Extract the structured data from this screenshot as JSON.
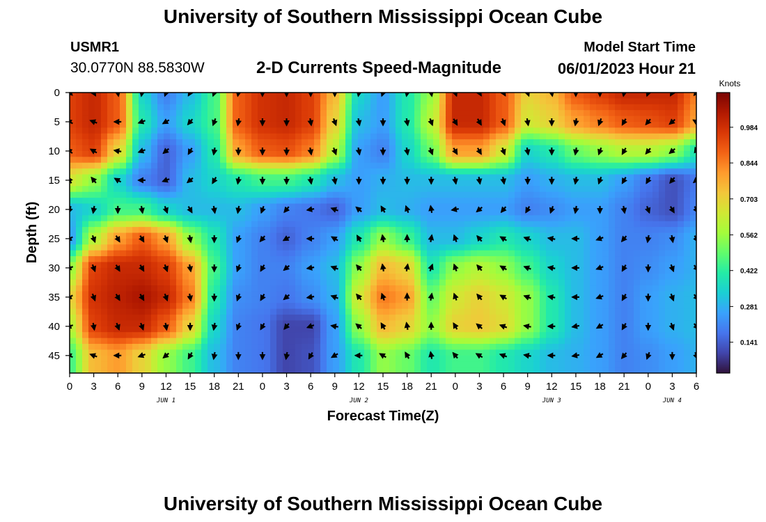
{
  "header": {
    "title": "University of Southern Mississippi Ocean Cube",
    "station_id": "USMR1",
    "latlon": "30.0770N  88.5830W",
    "product": "2-D Currents Speed-Magnitude",
    "model_start_label": "Model Start Time",
    "model_start_value": "06/01/2023 Hour 21"
  },
  "footer": {
    "title": "University of Southern Mississippi Ocean Cube"
  },
  "chart_data": {
    "type": "heatmap",
    "title": "2-D Currents Speed-Magnitude",
    "xlabel": "Forecast Time(Z)",
    "ylabel": "Depth (ft)",
    "x_ticks": [
      "0",
      "3",
      "6",
      "9",
      "12",
      "15",
      "18",
      "21",
      "0",
      "3",
      "6",
      "9",
      "12",
      "15",
      "18",
      "21",
      "0",
      "3",
      "6",
      "9",
      "12",
      "15",
      "18",
      "21",
      "0",
      "3",
      "6"
    ],
    "x_hours": [
      0,
      3,
      6,
      9,
      12,
      15,
      18,
      21,
      24,
      27,
      30,
      33,
      36,
      39,
      42,
      45,
      48,
      51,
      54,
      57,
      60,
      63,
      66,
      69,
      72,
      75,
      78
    ],
    "day_labels": [
      {
        "text": "JUN 1",
        "hour": 12
      },
      {
        "text": "JUN 2",
        "hour": 36
      },
      {
        "text": "JUN 3",
        "hour": 60
      },
      {
        "text": "JUN 4",
        "hour": 75
      }
    ],
    "y_ticks": [
      0,
      5,
      10,
      15,
      20,
      25,
      30,
      35,
      40,
      45
    ],
    "ylim": [
      0,
      48
    ],
    "xlim": [
      0,
      78
    ],
    "colorbar": {
      "label": "Knots",
      "ticks": [
        "0.984",
        "0.844",
        "0.703",
        "0.562",
        "0.422",
        "0.281",
        "0.141"
      ],
      "tick_values": [
        0.984,
        0.844,
        0.703,
        0.562,
        0.422,
        0.281,
        0.141
      ],
      "range": [
        0.02,
        1.12
      ],
      "colors": [
        "#30123b",
        "#4145ab",
        "#4675ed",
        "#39a2fc",
        "#1bcfd4",
        "#24eca6",
        "#61fc6c",
        "#a4fc3b",
        "#d1e834",
        "#f3c63a",
        "#fe9b2d",
        "#f36315",
        "#d93806",
        "#b11901",
        "#7a0403"
      ]
    },
    "speed_rows_depth": [
      0,
      5,
      10,
      15,
      20,
      25,
      30,
      35,
      40,
      45
    ],
    "speed_cols_hour": [
      0,
      3,
      6,
      9,
      12,
      15,
      18,
      21,
      24,
      27,
      30,
      33,
      36,
      39,
      42,
      45,
      48,
      51,
      54,
      57,
      60,
      63,
      66,
      69,
      72,
      75,
      78
    ],
    "speed_knots": [
      [
        0.95,
        1.0,
        0.9,
        0.35,
        0.2,
        0.3,
        0.45,
        0.9,
        0.98,
        1.0,
        0.95,
        0.75,
        0.35,
        0.25,
        0.4,
        0.55,
        1.0,
        1.0,
        0.9,
        0.7,
        0.75,
        0.9,
        0.95,
        1.0,
        1.0,
        1.0,
        0.85
      ],
      [
        0.95,
        1.0,
        0.9,
        0.4,
        0.25,
        0.35,
        0.45,
        0.9,
        0.98,
        1.0,
        0.95,
        0.7,
        0.3,
        0.25,
        0.4,
        0.6,
        1.0,
        1.0,
        0.9,
        0.65,
        0.7,
        0.8,
        0.85,
        0.9,
        0.92,
        0.95,
        0.8
      ],
      [
        0.9,
        0.95,
        0.7,
        0.3,
        0.15,
        0.25,
        0.4,
        0.8,
        0.9,
        0.92,
        0.85,
        0.6,
        0.25,
        0.2,
        0.35,
        0.5,
        0.8,
        0.8,
        0.65,
        0.35,
        0.4,
        0.5,
        0.55,
        0.6,
        0.6,
        0.55,
        0.4
      ],
      [
        0.65,
        0.55,
        0.35,
        0.2,
        0.15,
        0.3,
        0.35,
        0.4,
        0.45,
        0.45,
        0.4,
        0.3,
        0.25,
        0.28,
        0.3,
        0.3,
        0.3,
        0.3,
        0.3,
        0.25,
        0.28,
        0.3,
        0.3,
        0.25,
        0.18,
        0.12,
        0.18
      ],
      [
        0.3,
        0.35,
        0.45,
        0.45,
        0.35,
        0.3,
        0.3,
        0.3,
        0.25,
        0.2,
        0.18,
        0.15,
        0.25,
        0.3,
        0.28,
        0.25,
        0.25,
        0.25,
        0.25,
        0.2,
        0.22,
        0.25,
        0.25,
        0.2,
        0.15,
        0.12,
        0.2
      ],
      [
        0.25,
        0.6,
        0.8,
        0.9,
        0.8,
        0.55,
        0.4,
        0.25,
        0.2,
        0.15,
        0.2,
        0.25,
        0.4,
        0.55,
        0.45,
        0.3,
        0.3,
        0.35,
        0.4,
        0.35,
        0.3,
        0.3,
        0.25,
        0.2,
        0.2,
        0.22,
        0.28
      ],
      [
        0.55,
        0.95,
        1.0,
        1.0,
        0.95,
        0.8,
        0.45,
        0.25,
        0.2,
        0.2,
        0.25,
        0.3,
        0.55,
        0.75,
        0.7,
        0.4,
        0.55,
        0.6,
        0.55,
        0.45,
        0.35,
        0.3,
        0.25,
        0.2,
        0.22,
        0.25,
        0.28
      ],
      [
        0.7,
        0.98,
        1.02,
        1.05,
        1.0,
        0.85,
        0.4,
        0.22,
        0.2,
        0.18,
        0.22,
        0.28,
        0.65,
        0.85,
        0.8,
        0.5,
        0.65,
        0.7,
        0.65,
        0.55,
        0.4,
        0.3,
        0.25,
        0.2,
        0.25,
        0.28,
        0.3
      ],
      [
        0.6,
        0.95,
        1.0,
        1.0,
        0.9,
        0.7,
        0.35,
        0.2,
        0.18,
        0.1,
        0.1,
        0.25,
        0.55,
        0.75,
        0.7,
        0.55,
        0.7,
        0.72,
        0.68,
        0.55,
        0.4,
        0.3,
        0.25,
        0.2,
        0.25,
        0.28,
        0.3
      ],
      [
        0.45,
        0.75,
        0.8,
        0.7,
        0.55,
        0.45,
        0.3,
        0.2,
        0.18,
        0.1,
        0.12,
        0.25,
        0.4,
        0.55,
        0.5,
        0.4,
        0.45,
        0.45,
        0.4,
        0.35,
        0.3,
        0.28,
        0.25,
        0.2,
        0.22,
        0.25,
        0.28
      ]
    ],
    "vector_rows_depth": [
      0,
      5,
      10,
      15,
      20,
      25,
      30,
      35,
      40,
      45
    ],
    "vector_cols_hour": [
      0,
      3,
      6,
      9,
      12,
      15,
      18,
      21,
      24,
      27,
      30,
      33,
      36,
      39,
      42,
      45,
      48,
      51,
      54,
      57,
      60,
      63,
      66,
      69,
      72,
      75,
      78
    ],
    "vector_direction_deg": [
      [
        135,
        150,
        170,
        190,
        200,
        210,
        200,
        190,
        180,
        180,
        180,
        180,
        190,
        200,
        190,
        170,
        160,
        150,
        150,
        160,
        170,
        180,
        180,
        190,
        200,
        210,
        220
      ],
      [
        300,
        290,
        270,
        250,
        240,
        220,
        200,
        190,
        180,
        180,
        170,
        160,
        170,
        180,
        170,
        160,
        150,
        150,
        160,
        170,
        180,
        190,
        200,
        210,
        220,
        230,
        300
      ],
      [
        310,
        300,
        280,
        250,
        230,
        210,
        190,
        180,
        180,
        180,
        170,
        160,
        170,
        180,
        170,
        160,
        150,
        150,
        160,
        170,
        180,
        190,
        200,
        210,
        220,
        230,
        340
      ],
      [
        330,
        320,
        300,
        270,
        250,
        230,
        210,
        190,
        180,
        180,
        170,
        170,
        180,
        180,
        180,
        180,
        170,
        170,
        170,
        180,
        180,
        190,
        200,
        210,
        210,
        220,
        230
      ],
      [
        200,
        190,
        180,
        170,
        160,
        150,
        170,
        190,
        200,
        220,
        260,
        290,
        310,
        330,
        340,
        350,
        260,
        230,
        220,
        210,
        200,
        190,
        180,
        170,
        160,
        150,
        150
      ],
      [
        240,
        160,
        150,
        150,
        160,
        170,
        180,
        200,
        220,
        240,
        270,
        300,
        330,
        350,
        0,
        10,
        340,
        320,
        300,
        290,
        280,
        270,
        250,
        220,
        190,
        170,
        150
      ],
      [
        250,
        160,
        150,
        150,
        160,
        170,
        180,
        200,
        210,
        230,
        260,
        290,
        320,
        350,
        10,
        20,
        340,
        320,
        300,
        290,
        280,
        270,
        250,
        210,
        180,
        160,
        140
      ],
      [
        240,
        160,
        150,
        150,
        160,
        170,
        180,
        200,
        210,
        230,
        260,
        290,
        320,
        340,
        0,
        10,
        340,
        320,
        300,
        290,
        280,
        270,
        250,
        210,
        180,
        160,
        140
      ],
      [
        250,
        170,
        160,
        160,
        170,
        180,
        190,
        200,
        210,
        220,
        250,
        280,
        310,
        330,
        350,
        0,
        330,
        310,
        290,
        280,
        270,
        260,
        240,
        210,
        180,
        160,
        140
      ],
      [
        300,
        290,
        270,
        250,
        230,
        210,
        190,
        180,
        180,
        190,
        210,
        240,
        270,
        300,
        330,
        350,
        320,
        300,
        290,
        280,
        270,
        260,
        240,
        220,
        200,
        180,
        160
      ]
    ]
  }
}
